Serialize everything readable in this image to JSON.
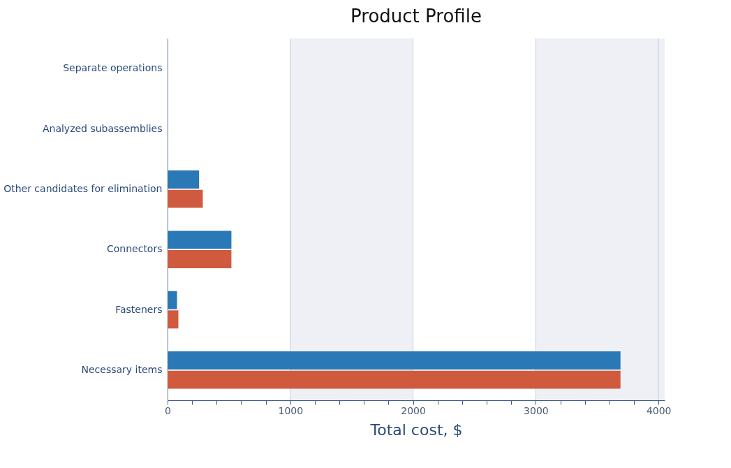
{
  "chart_data": {
    "type": "bar",
    "orientation": "horizontal",
    "title": "Product Profile",
    "xlabel": "Total cost, $",
    "categories": [
      "Separate operations",
      "Analyzed subassemblies",
      "Other candidates for elimination",
      "Connectors",
      "Fasteners",
      "Necessary items"
    ],
    "series": [
      {
        "color": "#2a78b5",
        "values": [
          0,
          0,
          257,
          520,
          77,
          3690
        ]
      },
      {
        "color": "#d05a3e",
        "values": [
          0,
          0,
          287,
          520,
          88,
          3690
        ]
      }
    ],
    "xlim": [
      0,
      4050
    ],
    "xticks": [
      0,
      {
        "value": 200,
        "label": null
      },
      {
        "value": 400,
        "label": null
      },
      {
        "value": 600,
        "label": null
      },
      {
        "value": 800,
        "label": null
      },
      1000,
      {
        "value": 1200,
        "label": null
      },
      {
        "value": 1400,
        "label": null
      },
      {
        "value": 1600,
        "label": null
      },
      {
        "value": 1800,
        "label": null
      },
      2000,
      {
        "value": 2200,
        "label": null
      },
      {
        "value": 2400,
        "label": null
      },
      {
        "value": 2600,
        "label": null
      },
      {
        "value": 2800,
        "label": null
      },
      3000,
      {
        "value": 3200,
        "label": null
      },
      {
        "value": 3400,
        "label": null
      },
      {
        "value": 3600,
        "label": null
      },
      {
        "value": 3800,
        "label": null
      },
      4000
    ],
    "bands": [
      {
        "axis": "x",
        "from": 1000,
        "to": 2000,
        "color": "#eef0f6"
      },
      {
        "axis": "x",
        "from": 3000,
        "to": 4050,
        "color": "#eef0f6"
      }
    ],
    "grid": "x"
  }
}
